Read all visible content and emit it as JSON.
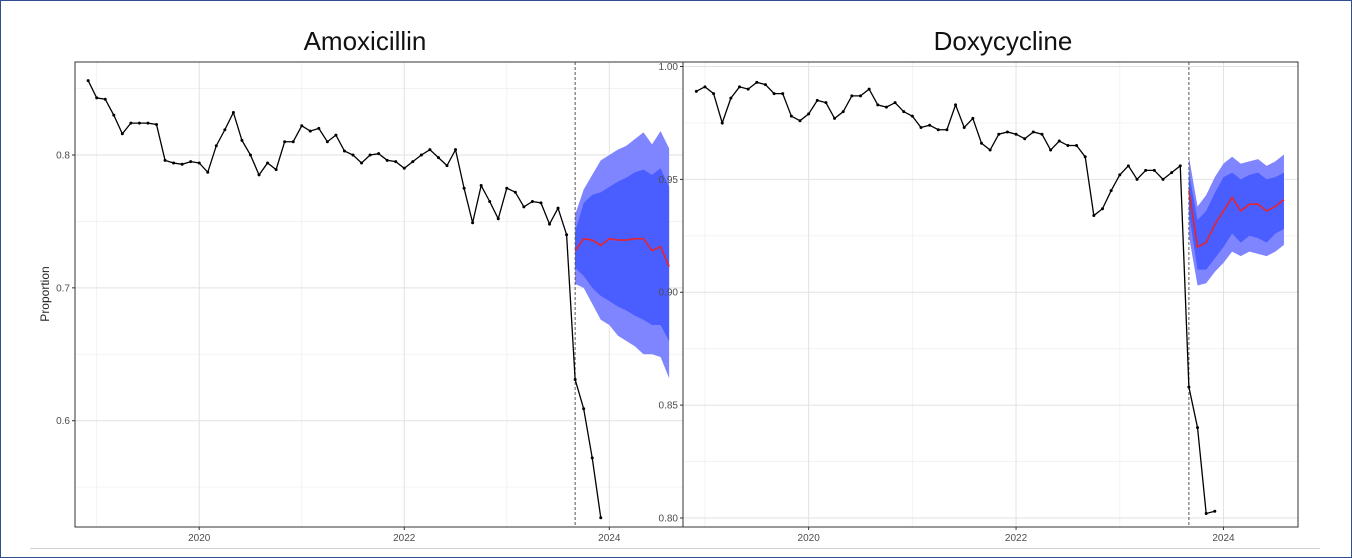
{
  "chart_data": [
    {
      "type": "line",
      "title": "Amoxicillin",
      "xlabel": "",
      "ylabel": "Proportion",
      "xlim": [
        "2018-10-15",
        "2024-09-20"
      ],
      "ylim": [
        0.52,
        0.87
      ],
      "x_ticks": [
        "2020",
        "2022",
        "2024"
      ],
      "y_ticks": [
        "0.6",
        "0.7",
        "0.8"
      ],
      "intervention_date": "2023-09-01",
      "grid": true,
      "legend": "none",
      "colors": {
        "observed": "#000000",
        "forecast": "#e8232a",
        "inner_band": "#4a5eff",
        "outer_band": "#7f85ff"
      },
      "observed": {
        "x": [
          "2018-12",
          "2019-01",
          "2019-02",
          "2019-03",
          "2019-04",
          "2019-05",
          "2019-06",
          "2019-07",
          "2019-08",
          "2019-09",
          "2019-10",
          "2019-11",
          "2019-12",
          "2020-01",
          "2020-02",
          "2020-03",
          "2020-04",
          "2020-05",
          "2020-06",
          "2020-07",
          "2020-08",
          "2020-09",
          "2020-10",
          "2020-11",
          "2020-12",
          "2021-01",
          "2021-02",
          "2021-03",
          "2021-04",
          "2021-05",
          "2021-06",
          "2021-07",
          "2021-08",
          "2021-09",
          "2021-10",
          "2021-11",
          "2021-12",
          "2022-01",
          "2022-02",
          "2022-03",
          "2022-04",
          "2022-05",
          "2022-06",
          "2022-07",
          "2022-08",
          "2022-09",
          "2022-10",
          "2022-11",
          "2022-12",
          "2023-01",
          "2023-02",
          "2023-03",
          "2023-04",
          "2023-05",
          "2023-06",
          "2023-07",
          "2023-08",
          "2023-09",
          "2023-10",
          "2023-11",
          "2023-12"
        ],
        "y": [
          0.856,
          0.843,
          0.842,
          0.83,
          0.816,
          0.824,
          0.824,
          0.824,
          0.823,
          0.796,
          0.794,
          0.793,
          0.795,
          0.794,
          0.787,
          0.807,
          0.819,
          0.832,
          0.811,
          0.8,
          0.785,
          0.794,
          0.789,
          0.81,
          0.81,
          0.822,
          0.818,
          0.82,
          0.81,
          0.815,
          0.803,
          0.8,
          0.794,
          0.8,
          0.801,
          0.796,
          0.795,
          0.79,
          0.795,
          0.8,
          0.804,
          0.798,
          0.792,
          0.804,
          0.775,
          0.749,
          0.777,
          0.765,
          0.752,
          0.775,
          0.772,
          0.761,
          0.765,
          0.764,
          0.748,
          0.76,
          0.74,
          0.631,
          0.609,
          0.572,
          0.527
        ]
      },
      "forecast": {
        "x": [
          "2023-09",
          "2023-10",
          "2023-11",
          "2023-12",
          "2024-01",
          "2024-02",
          "2024-03",
          "2024-04",
          "2024-05",
          "2024-06",
          "2024-07",
          "2024-08"
        ],
        "y": [
          0.728,
          0.737,
          0.736,
          0.732,
          0.737,
          0.736,
          0.736,
          0.737,
          0.737,
          0.728,
          0.731,
          0.716
        ],
        "inner_lower": [
          0.715,
          0.709,
          0.7,
          0.694,
          0.69,
          0.686,
          0.683,
          0.679,
          0.676,
          0.672,
          0.672,
          0.66
        ],
        "inner_upper": [
          0.742,
          0.764,
          0.77,
          0.772,
          0.776,
          0.78,
          0.783,
          0.787,
          0.789,
          0.785,
          0.79,
          0.776
        ],
        "outer_lower": [
          0.703,
          0.7,
          0.688,
          0.676,
          0.672,
          0.664,
          0.66,
          0.656,
          0.65,
          0.65,
          0.648,
          0.632
        ],
        "outer_upper": [
          0.755,
          0.774,
          0.785,
          0.796,
          0.8,
          0.804,
          0.807,
          0.812,
          0.817,
          0.808,
          0.818,
          0.805
        ]
      }
    },
    {
      "type": "line",
      "title": "Doxycycline",
      "xlabel": "",
      "ylabel": "",
      "xlim": [
        "2018-10-15",
        "2024-09-20"
      ],
      "ylim": [
        0.796,
        1.002
      ],
      "x_ticks": [
        "2020",
        "2022",
        "2024"
      ],
      "y_ticks": [
        "0.80",
        "0.85",
        "0.90",
        "0.95",
        "1.00"
      ],
      "intervention_date": "2023-09-01",
      "grid": true,
      "legend": "none",
      "colors": {
        "observed": "#000000",
        "forecast": "#e8232a",
        "inner_band": "#4a5eff",
        "outer_band": "#7f85ff"
      },
      "observed": {
        "x": [
          "2018-12",
          "2019-01",
          "2019-02",
          "2019-03",
          "2019-04",
          "2019-05",
          "2019-06",
          "2019-07",
          "2019-08",
          "2019-09",
          "2019-10",
          "2019-11",
          "2019-12",
          "2020-01",
          "2020-02",
          "2020-03",
          "2020-04",
          "2020-05",
          "2020-06",
          "2020-07",
          "2020-08",
          "2020-09",
          "2020-10",
          "2020-11",
          "2020-12",
          "2021-01",
          "2021-02",
          "2021-03",
          "2021-04",
          "2021-05",
          "2021-06",
          "2021-07",
          "2021-08",
          "2021-09",
          "2021-10",
          "2021-11",
          "2021-12",
          "2022-01",
          "2022-02",
          "2022-03",
          "2022-04",
          "2022-05",
          "2022-06",
          "2022-07",
          "2022-08",
          "2022-09",
          "2022-10",
          "2022-11",
          "2022-12",
          "2023-01",
          "2023-02",
          "2023-03",
          "2023-04",
          "2023-05",
          "2023-06",
          "2023-07",
          "2023-08",
          "2023-09",
          "2023-10",
          "2023-11",
          "2023-12"
        ],
        "y": [
          0.989,
          0.991,
          0.988,
          0.975,
          0.986,
          0.991,
          0.99,
          0.993,
          0.992,
          0.988,
          0.988,
          0.978,
          0.976,
          0.979,
          0.985,
          0.984,
          0.977,
          0.98,
          0.987,
          0.987,
          0.99,
          0.983,
          0.982,
          0.984,
          0.98,
          0.978,
          0.973,
          0.974,
          0.972,
          0.972,
          0.983,
          0.973,
          0.977,
          0.966,
          0.963,
          0.97,
          0.971,
          0.97,
          0.968,
          0.971,
          0.97,
          0.963,
          0.967,
          0.965,
          0.965,
          0.96,
          0.934,
          0.937,
          0.945,
          0.952,
          0.956,
          0.95,
          0.954,
          0.954,
          0.95,
          0.953,
          0.956,
          0.858,
          0.84,
          0.802,
          0.803
        ]
      },
      "forecast": {
        "x": [
          "2023-09",
          "2023-10",
          "2023-11",
          "2023-12",
          "2024-01",
          "2024-02",
          "2024-03",
          "2024-04",
          "2024-05",
          "2024-06",
          "2024-07",
          "2024-08"
        ],
        "y": [
          0.945,
          0.92,
          0.922,
          0.93,
          0.936,
          0.942,
          0.936,
          0.939,
          0.939,
          0.936,
          0.938,
          0.941
        ],
        "inner_lower": [
          0.935,
          0.91,
          0.91,
          0.915,
          0.92,
          0.926,
          0.922,
          0.925,
          0.924,
          0.922,
          0.926,
          0.928
        ],
        "inner_upper": [
          0.953,
          0.932,
          0.936,
          0.944,
          0.951,
          0.953,
          0.95,
          0.952,
          0.953,
          0.95,
          0.951,
          0.953
        ],
        "outer_lower": [
          0.925,
          0.903,
          0.904,
          0.909,
          0.913,
          0.918,
          0.916,
          0.918,
          0.917,
          0.916,
          0.918,
          0.921
        ],
        "outer_upper": [
          0.96,
          0.938,
          0.943,
          0.951,
          0.957,
          0.96,
          0.957,
          0.958,
          0.959,
          0.956,
          0.958,
          0.961
        ]
      }
    }
  ]
}
